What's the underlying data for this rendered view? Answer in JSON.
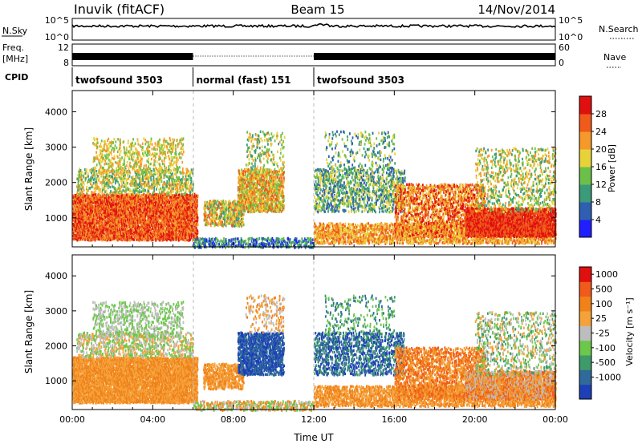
{
  "header": {
    "station": "Inuvik (fitACF)",
    "beam": "Beam 15",
    "date": "14/Nov/2014"
  },
  "summary_panels": {
    "nsky_label": "N.Sky",
    "nsky_tick_top": "10^5",
    "nsky_tick_bottom": "10^0",
    "nsearch_label": "N.Search",
    "nsearch_tick_top": "10^5",
    "nsearch_tick_bottom": "10^0",
    "freq_label_top": "Freq.",
    "freq_label_bottom": "[MHz]",
    "freq_tick_top": "12",
    "freq_tick_bottom": "8",
    "nave_label": "Nave",
    "nave_tick_top": "60",
    "nave_tick_bottom": "0",
    "cpid_label": "CPID",
    "cpid_segments": [
      {
        "label": "twofsound 3503",
        "start_hour": 0,
        "end_hour": 6.0
      },
      {
        "label": "normal (fast) 151",
        "start_hour": 6.0,
        "end_hour": 12.0
      },
      {
        "label": "twofsound 3503",
        "start_hour": 12.0,
        "end_hour": 24.0
      }
    ]
  },
  "chart_data": [
    {
      "type": "heatmap",
      "panel": "power",
      "ylabel": "Slant Range [km]",
      "xlabel": "Time UT",
      "x_ticks": [
        "00:00",
        "04:00",
        "08:00",
        "12:00",
        "16:00",
        "20:00",
        "00:00"
      ],
      "x_tick_hours": [
        0,
        4,
        8,
        12,
        16,
        20,
        24
      ],
      "y_ticks": [
        "1000",
        "2000",
        "3000",
        "4000"
      ],
      "y_tick_values": [
        1000,
        2000,
        3000,
        4000
      ],
      "xlim": [
        0,
        24
      ],
      "ylim": [
        180,
        4600
      ],
      "colorbar": {
        "label": "Power [dB]",
        "ticks": [
          "4",
          "8",
          "12",
          "16",
          "20",
          "24",
          "28"
        ],
        "colors": [
          "#1f1fff",
          "#2f5fb0",
          "#3a9a7a",
          "#6cc04a",
          "#e8d23a",
          "#f59a2a",
          "#f05a1a",
          "#e01010"
        ]
      }
    },
    {
      "type": "heatmap",
      "panel": "velocity",
      "ylabel": "Slant Range [km]",
      "xlabel": "Time UT",
      "x_ticks": [
        "00:00",
        "04:00",
        "08:00",
        "12:00",
        "16:00",
        "20:00",
        "00:00"
      ],
      "x_tick_hours": [
        0,
        4,
        8,
        12,
        16,
        20,
        24
      ],
      "y_ticks": [
        "1000",
        "2000",
        "3000",
        "4000"
      ],
      "y_tick_values": [
        1000,
        2000,
        3000,
        4000
      ],
      "xlim": [
        0,
        24
      ],
      "ylim": [
        180,
        4600
      ],
      "colorbar": {
        "label": "Velocity [m s⁻¹]",
        "ticks": [
          "1000",
          "500",
          "100",
          "25",
          "-25",
          "-100",
          "-500",
          "-1000"
        ],
        "colors": [
          "#1d3fb8",
          "#2f6a9a",
          "#3f9a6a",
          "#6cc84a",
          "#bdbdbd",
          "#f5a23a",
          "#f0821a",
          "#f05a1a",
          "#e01010"
        ]
      }
    }
  ],
  "xlabel": "Time UT"
}
